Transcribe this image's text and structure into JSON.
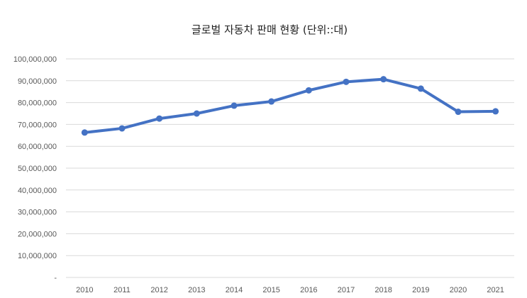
{
  "chart_data": {
    "type": "line",
    "title": "글로벌 자동차 판매 현황 (단위::대)",
    "xlabel": "",
    "ylabel": "",
    "categories": [
      "2010",
      "2011",
      "2012",
      "2013",
      "2014",
      "2015",
      "2016",
      "2017",
      "2018",
      "2019",
      "2020",
      "2021"
    ],
    "series": [
      {
        "values": [
          66300000,
          68200000,
          72700000,
          75000000,
          78600000,
          80500000,
          85600000,
          89500000,
          90700000,
          86400000,
          75800000,
          76000000
        ],
        "color": "#4472c4"
      }
    ],
    "ylim": [
      0,
      100000000
    ],
    "y_ticks": [
      0,
      10000000,
      20000000,
      30000000,
      40000000,
      50000000,
      60000000,
      70000000,
      80000000,
      90000000,
      100000000
    ],
    "y_tick_labels": [
      "-",
      "10,000,000",
      "20,000,000",
      "30,000,000",
      "40,000,000",
      "50,000,000",
      "60,000,000",
      "70,000,000",
      "80,000,000",
      "90,000,000",
      "100,000,000"
    ],
    "grid": true,
    "legend": "none"
  }
}
